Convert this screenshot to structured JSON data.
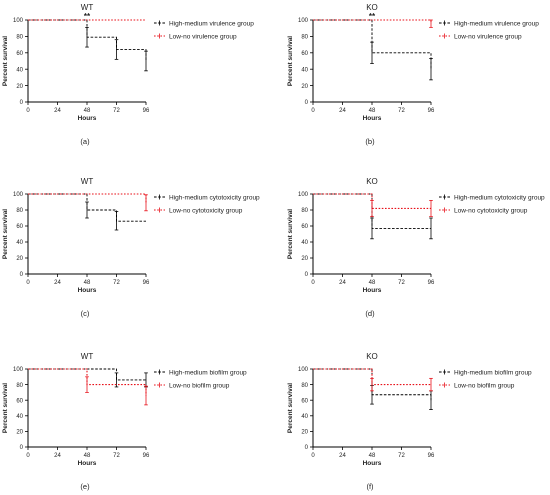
{
  "chart_data": [
    {
      "panel_label": "(a)",
      "title": "WT",
      "type": "line",
      "xlabel": "Hours",
      "ylabel": "Percent survival",
      "xlim": [
        0,
        96
      ],
      "ylim": [
        0,
        100
      ],
      "xticks": [
        0,
        24,
        48,
        72,
        96
      ],
      "yticks": [
        0,
        20,
        40,
        60,
        80,
        100
      ],
      "annotations": [
        {
          "text": "**",
          "x": 48
        }
      ],
      "series": [
        {
          "name": "High-medium virulence group",
          "color": "#000000",
          "steps": [
            [
              0,
              100
            ],
            [
              48,
              79
            ],
            [
              72,
              64
            ],
            [
              96,
              50
            ]
          ],
          "errors": [
            [
              48,
              67,
              91
            ],
            [
              72,
              52,
              76
            ],
            [
              96,
              38,
              62
            ]
          ]
        },
        {
          "name": "Low-no virulence group",
          "color": "#e8111a",
          "steps": [
            [
              0,
              100
            ],
            [
              96,
              100
            ]
          ],
          "errors": []
        }
      ]
    },
    {
      "panel_label": "(b)",
      "title": "KO",
      "type": "line",
      "xlabel": "Hours",
      "ylabel": "Percent survival",
      "xlim": [
        0,
        96
      ],
      "ylim": [
        0,
        100
      ],
      "xticks": [
        0,
        24,
        48,
        72,
        96
      ],
      "yticks": [
        0,
        20,
        40,
        60,
        80,
        100
      ],
      "annotations": [
        {
          "text": "**",
          "x": 48
        }
      ],
      "series": [
        {
          "name": "High-medium virulence group",
          "color": "#000000",
          "steps": [
            [
              0,
              100
            ],
            [
              48,
              60
            ],
            [
              96,
              40
            ]
          ],
          "errors": [
            [
              48,
              47,
              73
            ],
            [
              96,
              27,
              53
            ]
          ]
        },
        {
          "name": "Low-no virulence group",
          "color": "#e8111a",
          "steps": [
            [
              0,
              100
            ],
            [
              96,
              97
            ]
          ],
          "errors": [
            [
              96,
              91,
              100
            ]
          ]
        }
      ]
    },
    {
      "panel_label": "(c)",
      "title": "WT",
      "type": "line",
      "xlabel": "Hours",
      "ylabel": "Percent survival",
      "xlim": [
        0,
        96
      ],
      "ylim": [
        0,
        100
      ],
      "xticks": [
        0,
        24,
        48,
        72,
        96
      ],
      "yticks": [
        0,
        20,
        40,
        60,
        80,
        100
      ],
      "annotations": [],
      "series": [
        {
          "name": "High-medium cytotoxicity group",
          "color": "#000000",
          "steps": [
            [
              0,
              100
            ],
            [
              48,
              80
            ],
            [
              72,
              66
            ],
            [
              96,
              66
            ]
          ],
          "errors": [
            [
              48,
              70,
              90
            ],
            [
              72,
              55,
              78
            ]
          ]
        },
        {
          "name": "Low-no cytotoxicity group",
          "color": "#e8111a",
          "steps": [
            [
              0,
              100
            ],
            [
              96,
              89
            ]
          ],
          "errors": [
            [
              96,
              79,
              99
            ]
          ]
        }
      ]
    },
    {
      "panel_label": "(d)",
      "title": "KO",
      "type": "line",
      "xlabel": "Hours",
      "ylabel": "Percent survival",
      "xlim": [
        0,
        96
      ],
      "ylim": [
        0,
        100
      ],
      "xticks": [
        0,
        24,
        48,
        72,
        96
      ],
      "yticks": [
        0,
        20,
        40,
        60,
        80,
        100
      ],
      "annotations": [],
      "series": [
        {
          "name": "High-medium cytotoxicity group",
          "color": "#000000",
          "steps": [
            [
              0,
              100
            ],
            [
              48,
              57
            ],
            [
              96,
              57
            ]
          ],
          "errors": [
            [
              48,
              44,
              70
            ],
            [
              96,
              44,
              70
            ]
          ]
        },
        {
          "name": "Low-no cytotoxicity group",
          "color": "#e8111a",
          "steps": [
            [
              0,
              100
            ],
            [
              48,
              82
            ],
            [
              96,
              82
            ]
          ],
          "errors": [
            [
              48,
              72,
              92
            ],
            [
              96,
              72,
              92
            ]
          ]
        }
      ]
    },
    {
      "panel_label": "(e)",
      "title": "WT",
      "type": "line",
      "xlabel": "Hours",
      "ylabel": "Percent survival",
      "xlim": [
        0,
        96
      ],
      "ylim": [
        0,
        100
      ],
      "xticks": [
        0,
        24,
        48,
        72,
        96
      ],
      "yticks": [
        0,
        20,
        40,
        60,
        80,
        100
      ],
      "annotations": [],
      "series": [
        {
          "name": "High-medium biofilm group",
          "color": "#000000",
          "steps": [
            [
              0,
              100
            ],
            [
              72,
              86
            ],
            [
              96,
              86
            ]
          ],
          "errors": [
            [
              72,
              77,
              95
            ],
            [
              96,
              77,
              95
            ]
          ]
        },
        {
          "name": "Low-no biofilm group",
          "color": "#e8111a",
          "steps": [
            [
              0,
              100
            ],
            [
              48,
              80
            ],
            [
              96,
              66
            ]
          ],
          "errors": [
            [
              48,
              70,
              90
            ],
            [
              96,
              54,
              78
            ]
          ]
        }
      ]
    },
    {
      "panel_label": "(f)",
      "title": "KO",
      "type": "line",
      "xlabel": "Hours",
      "ylabel": "Percent survival",
      "xlim": [
        0,
        96
      ],
      "ylim": [
        0,
        100
      ],
      "xticks": [
        0,
        24,
        48,
        72,
        96
      ],
      "yticks": [
        0,
        20,
        40,
        60,
        80,
        100
      ],
      "annotations": [],
      "series": [
        {
          "name": "High-medium biofilm group",
          "color": "#000000",
          "steps": [
            [
              0,
              100
            ],
            [
              48,
              67
            ],
            [
              96,
              60
            ]
          ],
          "errors": [
            [
              48,
              55,
              79
            ],
            [
              96,
              48,
              72
            ]
          ]
        },
        {
          "name": "Low-no biofilm group",
          "color": "#e8111a",
          "steps": [
            [
              0,
              100
            ],
            [
              48,
              80
            ],
            [
              96,
              80
            ]
          ],
          "errors": [
            [
              48,
              72,
              88
            ],
            [
              96,
              72,
              88
            ]
          ]
        }
      ]
    }
  ]
}
